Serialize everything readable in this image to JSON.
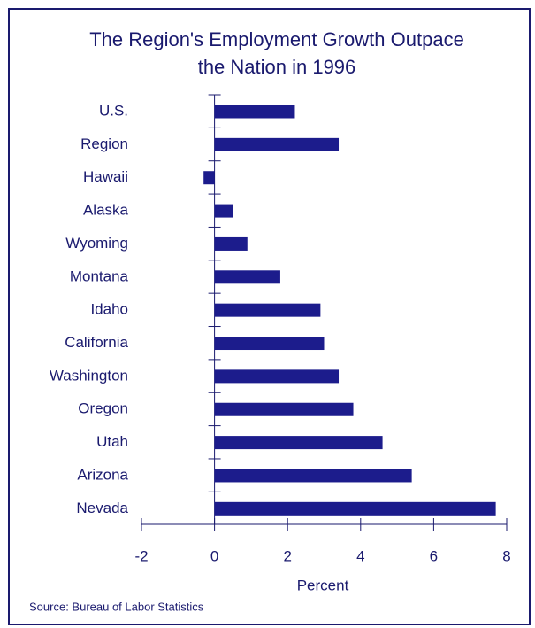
{
  "chart_data": {
    "type": "hbar",
    "title": [
      "The Region's Employment Growth Outpace",
      "the Nation in 1996"
    ],
    "x_label": "Percent",
    "source": "Source:  Bureau of Labor Statistics",
    "categories": [
      "U.S.",
      "Region",
      "Hawaii",
      "Alaska",
      "Wyoming",
      "Montana",
      "Idaho",
      "California",
      "Washington",
      "Oregon",
      "Utah",
      "Arizona",
      "Nevada"
    ],
    "values": [
      2.2,
      3.4,
      -0.3,
      0.5,
      0.9,
      1.8,
      2.9,
      3.0,
      3.4,
      3.8,
      4.6,
      5.4,
      7.7
    ],
    "color": "#1c1c8c",
    "xlim": [
      -2,
      8
    ],
    "xticks": [
      -2,
      0,
      2,
      4,
      6,
      8
    ]
  }
}
